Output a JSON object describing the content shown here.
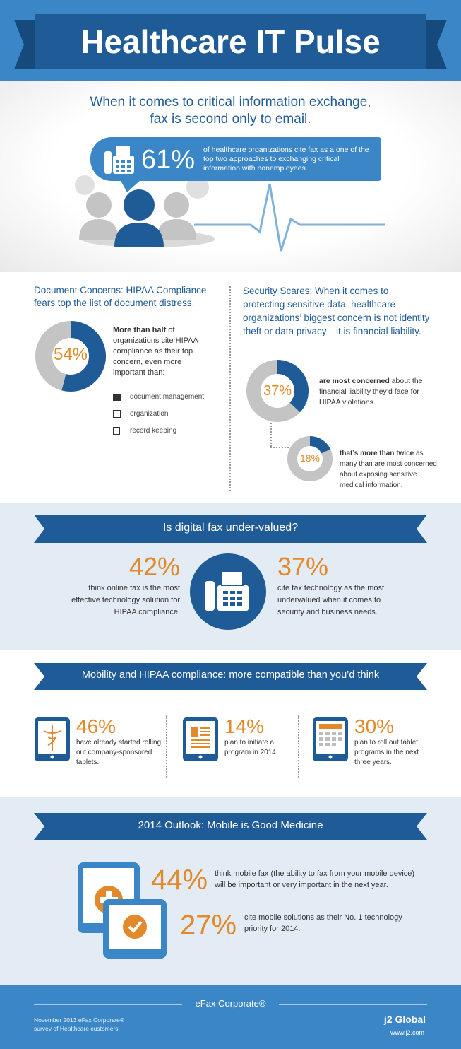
{
  "header": {
    "title": "Healthcare IT Pulse"
  },
  "intro": {
    "headline_1": "When it comes to critical information exchange,",
    "headline_2": "fax is second only to email.",
    "stat": "61%",
    "stat_text": "of healthcare organizations cite fax as a one of the top two approaches to exchanging critical information with nonemployees."
  },
  "document_concerns": {
    "title": "Document Concerns: HIPAA Compliance fears top the list of document distress.",
    "stat": "54%",
    "text_bold": "More than half",
    "text_rest": " of organizations cite HIPAA compliance as their top concern, even more important than:",
    "items": [
      "document management",
      "organization",
      "record keeping"
    ]
  },
  "security_scares": {
    "title": "Security Scares: When it comes to protecting sensitive data, healthcare organizations’ biggest concern is not identity theft or data privacy—it is financial liability.",
    "stat1": "37%",
    "stat1_bold": "are most concerned",
    "stat1_rest": " about the financial liability they’d face for HIPAA violations.",
    "stat2": "18%",
    "stat2_bold": "that’s more than twice",
    "stat2_rest": " as many than are most concerned about exposing sensitive medical information."
  },
  "digital_fax": {
    "title": "Is digital fax under-valued?",
    "left_stat": "42%",
    "left_text": "think online fax is the most effective technology solution for HIPAA compliance.",
    "right_stat": "37%",
    "right_text": "cite fax technology as the most undervalued when it comes to security and business needs."
  },
  "mobility": {
    "title": "Mobility and HIPAA compliance: more compatible than you’d think",
    "items": [
      {
        "stat": "46%",
        "text": "have already started rolling out company-sponsored tablets.",
        "icon": "caduceus-tablet-icon"
      },
      {
        "stat": "14%",
        "text": "plan to initiate a program in 2014.",
        "icon": "document-tablet-icon"
      },
      {
        "stat": "30%",
        "text": "plan to roll out tablet programs in the next three years.",
        "icon": "calendar-tablet-icon"
      }
    ]
  },
  "outlook": {
    "title": "2014 Outlook: Mobile is Good Medicine",
    "stat1": "44%",
    "text1": "think mobile fax (the ability to fax from your mobile device) will be important or very important in the next year.",
    "stat2": "27%",
    "text2": "cite mobile solutions as their No. 1 technology priority for 2014."
  },
  "footer": {
    "brand": "eFax Corporate®",
    "note_1": "November 2013 eFax Corporate®",
    "note_2": "survey of Healthcare customers.",
    "logo": "j2 Global",
    "url": "www.j2.com"
  },
  "colors": {
    "dark_blue": "#1f5b96",
    "mid_blue": "#3a86c6",
    "orange": "#e28a2b",
    "gray": "#bdbdbd",
    "light_bg": "#e3ecf5"
  }
}
